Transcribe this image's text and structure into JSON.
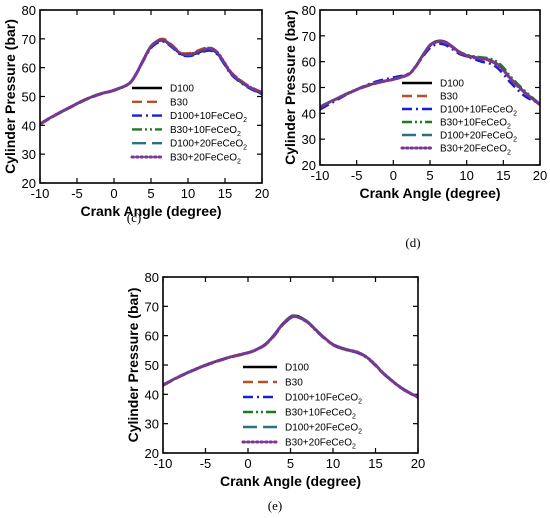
{
  "colors": {
    "D100": "#000000",
    "B30": "#b5502b",
    "D100+10FeCeO2": "#1a1fd6",
    "B30+10FeCeO2": "#1f7a1f",
    "D100+20FeCeO2": "#2d6f86",
    "B30+20FeCeO2": "#7b3594"
  },
  "legend_entries": [
    {
      "key": "D100",
      "base": "D100",
      "sub": ""
    },
    {
      "key": "B30",
      "base": "B30",
      "sub": ""
    },
    {
      "key": "D100+10FeCeO2",
      "base": "D100+10FeCeO",
      "sub": "2"
    },
    {
      "key": "B30+10FeCeO2",
      "base": "B30+10FeCeO",
      "sub": "2"
    },
    {
      "key": "D100+20FeCeO2",
      "base": "D100+20FeCeO",
      "sub": "2"
    },
    {
      "key": "B30+20FeCeO2",
      "base": "B30+20FeCeO",
      "sub": "2"
    }
  ],
  "chart_data": [
    {
      "type": "line",
      "panel": "(c)",
      "caption": "(c)",
      "xlabel": "Crank Angle (degree)",
      "ylabel": "Cylinder Pressure (bar)",
      "xlim": [
        -10,
        20
      ],
      "ylim": [
        20,
        80
      ],
      "xticks": [
        "-10",
        "-5",
        "0",
        "5",
        "10",
        "15",
        "20"
      ],
      "yticks": [
        "20",
        "30",
        "40",
        "50",
        "60",
        "70",
        "80"
      ],
      "legend_position": "lower-center",
      "x": [
        -10,
        -8,
        -6,
        -4,
        -2,
        0,
        2,
        3,
        4,
        5,
        6,
        6.5,
        7,
        8,
        9,
        10,
        11,
        12,
        13,
        14,
        15,
        16,
        18,
        20
      ],
      "series": [
        {
          "name": "D100",
          "values": [
            40.5,
            43.5,
            46.2,
            48.8,
            50.8,
            52.2,
            54.5,
            58,
            63,
            67.5,
            69.2,
            69.4,
            69,
            67,
            64.8,
            64.2,
            64.8,
            65.8,
            66.3,
            64.8,
            61,
            57.5,
            53.5,
            51
          ]
        },
        {
          "name": "B30",
          "values": [
            40.3,
            43.3,
            46,
            48.6,
            50.6,
            52,
            54.3,
            57.6,
            62.6,
            67.2,
            69.6,
            70,
            69.7,
            67.5,
            65.2,
            65,
            65.6,
            66.6,
            67,
            65.3,
            61.5,
            58,
            54,
            51.5
          ]
        },
        {
          "name": "D100+10FeCeO2",
          "values": [
            40.4,
            43.4,
            46.1,
            48.7,
            50.7,
            52.1,
            54.3,
            57.7,
            62.5,
            66.8,
            68.8,
            69,
            68.7,
            66.7,
            64.5,
            64,
            64.5,
            65.5,
            65.9,
            64.5,
            60.8,
            57.2,
            53.3,
            50.8
          ]
        },
        {
          "name": "B30+10FeCeO2",
          "values": [
            40.4,
            43.4,
            46.1,
            48.7,
            50.7,
            52.1,
            54.4,
            57.9,
            62.9,
            67.4,
            69.3,
            69.5,
            69.1,
            67.1,
            64.9,
            64.4,
            65,
            66,
            66.5,
            65,
            61.2,
            57.6,
            53.6,
            51.1
          ]
        },
        {
          "name": "D100+20FeCeO2",
          "values": [
            40.6,
            43.6,
            46.3,
            48.9,
            50.9,
            52.3,
            54.5,
            58,
            63,
            67.6,
            69.5,
            69.7,
            69.3,
            67.2,
            65,
            64.5,
            65.1,
            66.1,
            66.6,
            65.1,
            61.3,
            57.7,
            53.7,
            51.2
          ]
        },
        {
          "name": "B30+20FeCeO2",
          "values": [
            40.5,
            43.5,
            46.2,
            48.8,
            50.8,
            52.2,
            54.4,
            57.8,
            62.8,
            67.3,
            69.4,
            69.6,
            69.2,
            67.2,
            65,
            64.6,
            65.2,
            66.2,
            66.7,
            65.2,
            61.4,
            57.8,
            53.8,
            51.3
          ]
        }
      ]
    },
    {
      "type": "line",
      "panel": "(d)",
      "caption": "(d)",
      "xlabel": "Crank Angle (degree)",
      "ylabel": "Cylinder Pressure (bar)",
      "xlim": [
        -10,
        20
      ],
      "ylim": [
        20,
        80
      ],
      "xticks": [
        "-10",
        "-5",
        "0",
        "5",
        "10",
        "15",
        "20"
      ],
      "yticks": [
        "20",
        "30",
        "40",
        "50",
        "60",
        "70",
        "80"
      ],
      "legend_position": "lower-center",
      "x": [
        -10,
        -8,
        -6,
        -4,
        -2,
        0,
        2,
        3,
        4,
        5,
        6,
        7,
        8,
        9,
        10,
        11,
        12,
        13,
        14,
        15,
        16,
        18,
        20
      ],
      "series": [
        {
          "name": "D100",
          "values": [
            42.5,
            45.3,
            48,
            50.3,
            52,
            53.2,
            55,
            58,
            62.5,
            66.5,
            68,
            67.8,
            66,
            63.8,
            62.5,
            61.8,
            61.3,
            60.8,
            59.5,
            57,
            53.5,
            48,
            43.5
          ]
        },
        {
          "name": "B30",
          "values": [
            42.3,
            45.1,
            47.8,
            50.1,
            51.8,
            53,
            54.8,
            57.7,
            62,
            66,
            67.6,
            67.4,
            65.6,
            63.4,
            62,
            61.4,
            60.9,
            60.4,
            59,
            56.6,
            53.1,
            47.7,
            43.2
          ]
        },
        {
          "name": "D100+10FeCeO2",
          "values": [
            41.5,
            44.7,
            47.8,
            50.6,
            52.6,
            53.9,
            55.3,
            58,
            61.8,
            65.3,
            66.8,
            66.6,
            64.9,
            63,
            62,
            61,
            60,
            59.4,
            58,
            55.2,
            51.8,
            46.5,
            43.8
          ]
        },
        {
          "name": "B30+10FeCeO2",
          "values": [
            42.4,
            45.2,
            47.9,
            50.2,
            51.9,
            53.1,
            54.9,
            57.9,
            62.4,
            66.4,
            67.9,
            67.7,
            66,
            63.9,
            62.7,
            62.1,
            61.7,
            61.3,
            60.2,
            57.8,
            54.2,
            48.5,
            43.6
          ]
        },
        {
          "name": "D100+20FeCeO2",
          "values": [
            42.6,
            45.4,
            48.1,
            50.4,
            52.1,
            53.3,
            55.1,
            58.1,
            62.5,
            66.4,
            67.9,
            67.7,
            65.9,
            63.7,
            62.4,
            61.7,
            61.2,
            60.7,
            59.4,
            56.9,
            53.4,
            47.9,
            43.4
          ]
        },
        {
          "name": "B30+20FeCeO2",
          "values": [
            42.5,
            45.3,
            48,
            50.3,
            52,
            53.2,
            55,
            57.9,
            62.3,
            66.2,
            67.8,
            67.6,
            65.8,
            63.6,
            62.3,
            61.6,
            61.1,
            60.6,
            59.3,
            56.8,
            53.3,
            47.8,
            43.3
          ]
        }
      ]
    },
    {
      "type": "line",
      "panel": "(e)",
      "caption": "(e)",
      "xlabel": "Crank Angle (degree)",
      "ylabel": "Cylinder Pressure (bar)",
      "xlim": [
        -10,
        20
      ],
      "ylim": [
        20,
        80
      ],
      "xticks": [
        "-10",
        "-5",
        "0",
        "5",
        "10",
        "15",
        "20"
      ],
      "yticks": [
        "20",
        "30",
        "40",
        "50",
        "60",
        "70",
        "80"
      ],
      "legend_position": "lower-center",
      "x": [
        -10,
        -8,
        -6,
        -4,
        -2,
        0,
        1,
        2,
        3,
        4,
        5,
        5.5,
        6,
        7,
        8,
        9,
        10,
        11,
        12,
        13,
        14,
        15,
        16,
        18,
        20
      ],
      "series": [
        {
          "name": "D100",
          "values": [
            43.2,
            46.2,
            48.8,
            51,
            52.8,
            54.2,
            55.3,
            57,
            60,
            63.8,
            66.5,
            66.8,
            66.5,
            64.8,
            62,
            59.3,
            57,
            55.8,
            55,
            54.2,
            52.6,
            50,
            47,
            42.3,
            39
          ]
        },
        {
          "name": "B30",
          "values": [
            43,
            46,
            48.6,
            50.8,
            52.6,
            54,
            55.1,
            56.7,
            59.6,
            63.3,
            66,
            66.4,
            66.2,
            64.6,
            61.8,
            59.1,
            56.8,
            55.6,
            54.8,
            54,
            52.4,
            49.8,
            46.8,
            42.1,
            38.8
          ]
        },
        {
          "name": "D100+10FeCeO2",
          "values": [
            43.1,
            46.1,
            48.7,
            50.9,
            52.7,
            54.1,
            55.2,
            56.8,
            59.7,
            63.4,
            66,
            66.3,
            66.1,
            64.5,
            61.7,
            59,
            56.8,
            55.6,
            54.8,
            54,
            52.4,
            49.8,
            46.8,
            42.1,
            38.9
          ]
        },
        {
          "name": "B30+10FeCeO2",
          "values": [
            43.2,
            46.2,
            48.8,
            51,
            52.8,
            54.2,
            55.3,
            57,
            60,
            63.7,
            66.3,
            66.6,
            66.3,
            64.7,
            61.9,
            59.2,
            57,
            55.8,
            55,
            54.2,
            52.6,
            50,
            47,
            42.3,
            39
          ]
        },
        {
          "name": "D100+20FeCeO2",
          "values": [
            43.3,
            46.3,
            48.9,
            51.1,
            52.9,
            54.3,
            55.4,
            57.1,
            60.1,
            63.8,
            66.4,
            66.7,
            66.4,
            64.8,
            62,
            59.3,
            57.1,
            55.9,
            55.1,
            54.3,
            52.7,
            50.1,
            47.1,
            42.4,
            39.1
          ]
        },
        {
          "name": "B30+20FeCeO2",
          "values": [
            43.2,
            46.2,
            48.8,
            51,
            52.8,
            54.2,
            55.3,
            56.9,
            59.9,
            63.6,
            66.2,
            66.5,
            66.2,
            64.6,
            61.8,
            59.2,
            57,
            55.8,
            55,
            54.2,
            52.6,
            50,
            47,
            42.3,
            39
          ]
        }
      ]
    }
  ]
}
